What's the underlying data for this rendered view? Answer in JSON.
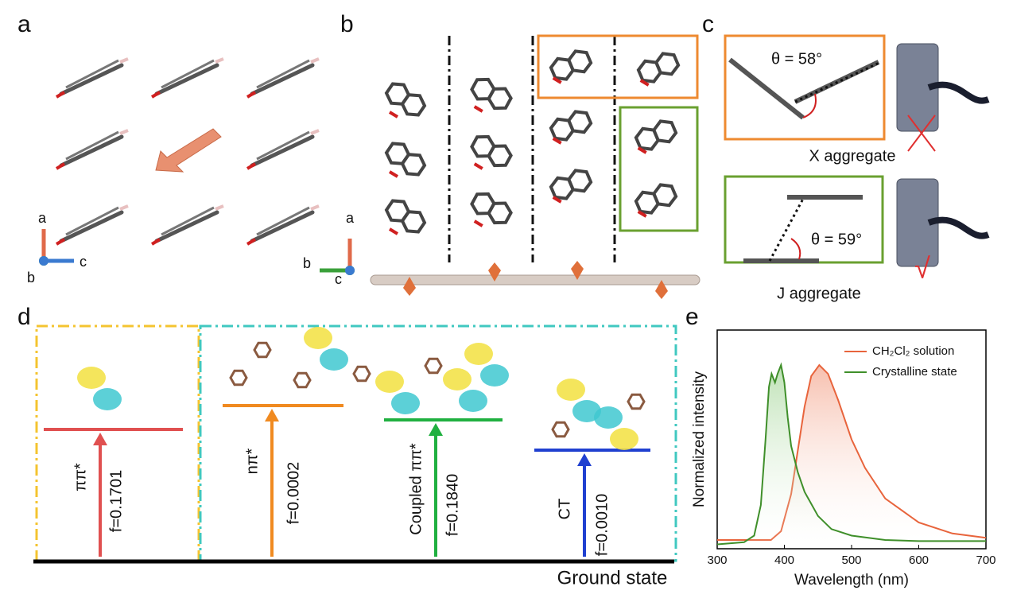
{
  "panels": {
    "a": {
      "label": "a",
      "axes": [
        "a",
        "b",
        "c"
      ]
    },
    "b": {
      "label": "b",
      "axes": [
        "a",
        "b",
        "c"
      ]
    },
    "c": {
      "label": "c",
      "x_angle": "θ = 58°",
      "x_name": "X aggregate",
      "j_angle": "θ = 59°",
      "j_name": "J aggregate",
      "check": "√"
    },
    "d": {
      "label": "d",
      "transitions": [
        {
          "name": "ππ*",
          "f": "f=0.1701"
        },
        {
          "name": "nπ*",
          "f": "f=0.0002"
        },
        {
          "name": "Coupled ππ*",
          "f": "f=0.1840"
        },
        {
          "name": "CT",
          "f": "f=0.0010"
        }
      ],
      "ground": "Ground state"
    },
    "e": {
      "label": "e"
    }
  },
  "chart_data": {
    "type": "line",
    "xlabel": "Wavelength (nm)",
    "ylabel": "Normalized intensity",
    "xlim": [
      300,
      700
    ],
    "xticks": [
      300,
      400,
      500,
      600,
      700
    ],
    "ylim": [
      0,
      1
    ],
    "legend": "upper right",
    "series": [
      {
        "name": "CH₂Cl₂ solution",
        "color": "#e8643c",
        "x": [
          300,
          380,
          395,
          410,
          420,
          430,
          440,
          452,
          465,
          480,
          500,
          520,
          550,
          600,
          650,
          700
        ],
        "values": [
          0.04,
          0.04,
          0.08,
          0.25,
          0.45,
          0.65,
          0.79,
          0.84,
          0.8,
          0.68,
          0.5,
          0.37,
          0.23,
          0.12,
          0.07,
          0.05
        ]
      },
      {
        "name": "Crystalline state",
        "color": "#3f8f2a",
        "x": [
          300,
          340,
          355,
          365,
          372,
          377,
          381,
          386,
          390,
          395,
          400,
          405,
          410,
          420,
          430,
          450,
          470,
          500,
          550,
          600,
          700
        ],
        "values": [
          0.02,
          0.03,
          0.06,
          0.2,
          0.5,
          0.74,
          0.8,
          0.76,
          0.8,
          0.84,
          0.76,
          0.6,
          0.47,
          0.35,
          0.26,
          0.15,
          0.09,
          0.06,
          0.04,
          0.035,
          0.035
        ]
      }
    ]
  }
}
